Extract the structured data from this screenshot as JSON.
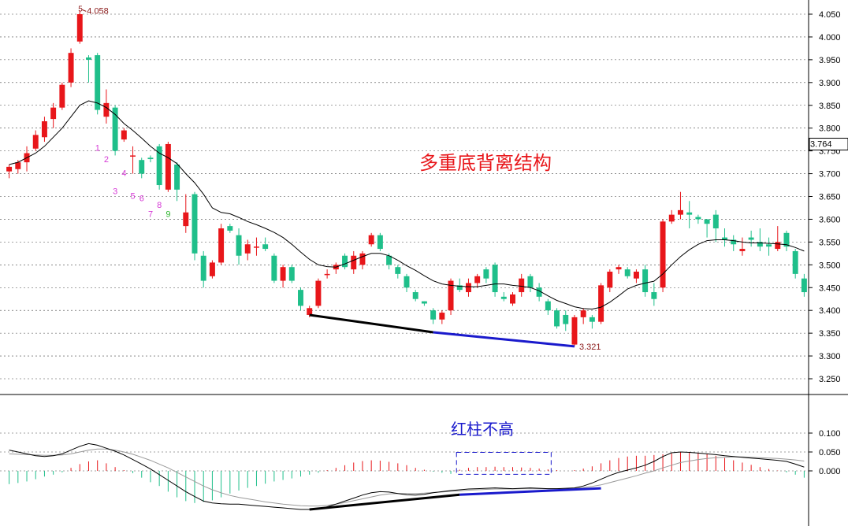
{
  "chart_data": {
    "type": "candlestick",
    "colors": {
      "up": "#e8161a",
      "down": "#1fbf8a",
      "ma": "#000000",
      "dif": "#000000",
      "dea": "#999999",
      "bottom_line_1": "#000000",
      "bottom_line_2": "#1a1acc",
      "title_text": "#e8161a",
      "macd_text": "#1a1acc",
      "seq_magenta": "#d63ad6",
      "seq_green": "#2db52d",
      "peak_label": "#8b1a1a"
    },
    "price_axis": {
      "ticks": [
        "4.050",
        "4.000",
        "3.950",
        "3.900",
        "3.850",
        "3.800",
        "3.750",
        "3.700",
        "3.650",
        "3.600",
        "3.550",
        "3.500",
        "3.450",
        "3.400",
        "3.350",
        "3.300",
        "3.250"
      ],
      "range": [
        3.225,
        4.075
      ],
      "current": "3.764"
    },
    "macd_axis": {
      "ticks": [
        "0.100",
        "0.050",
        "0.000"
      ],
      "range": [
        -0.11,
        0.12
      ]
    },
    "annotations": {
      "title": "多重底背离结构",
      "macd_note": "红柱不高",
      "high_label": "4.058",
      "high_prefix": "5",
      "low_label": "3.321",
      "sequence": [
        "1",
        "2",
        "3",
        "4",
        "5",
        "6",
        "7",
        "8",
        "9"
      ]
    },
    "candles": [
      [
        3.705,
        3.715,
        3.69,
        3.72
      ],
      [
        3.71,
        3.725,
        3.7,
        3.73
      ],
      [
        3.725,
        3.745,
        3.705,
        3.76
      ],
      [
        3.755,
        3.785,
        3.75,
        3.795
      ],
      [
        3.78,
        3.815,
        3.77,
        3.825
      ],
      [
        3.82,
        3.845,
        3.8,
        3.855
      ],
      [
        3.845,
        3.895,
        3.84,
        3.9
      ],
      [
        3.9,
        3.965,
        3.89,
        3.975
      ],
      [
        3.99,
        4.05,
        3.985,
        4.058
      ],
      [
        3.955,
        3.95,
        3.9,
        3.96
      ],
      [
        3.96,
        3.84,
        3.83,
        3.965
      ],
      [
        3.825,
        3.855,
        3.81,
        3.885
      ],
      [
        3.845,
        3.75,
        3.74,
        3.85
      ],
      [
        3.775,
        3.795,
        3.77,
        3.8
      ],
      [
        3.74,
        3.74,
        3.7,
        3.76
      ],
      [
        3.73,
        3.7,
        3.69,
        3.735
      ],
      [
        3.735,
        3.732,
        3.725,
        3.74
      ],
      [
        3.76,
        3.675,
        3.665,
        3.765
      ],
      [
        3.665,
        3.765,
        3.66,
        3.77
      ],
      [
        3.72,
        3.665,
        3.64,
        3.725
      ],
      [
        3.585,
        3.615,
        3.57,
        3.655
      ],
      [
        3.655,
        3.525,
        3.51,
        3.66
      ],
      [
        3.52,
        3.465,
        3.45,
        3.53
      ],
      [
        3.475,
        3.505,
        3.47,
        3.51
      ],
      [
        3.505,
        3.58,
        3.5,
        3.59
      ],
      [
        3.585,
        3.575,
        3.57,
        3.59
      ],
      [
        3.565,
        3.52,
        3.5,
        3.58
      ],
      [
        3.525,
        3.545,
        3.51,
        3.555
      ],
      [
        3.54,
        3.54,
        3.52,
        3.56
      ],
      [
        3.545,
        3.535,
        3.53,
        3.56
      ],
      [
        3.52,
        3.465,
        3.46,
        3.525
      ],
      [
        3.465,
        3.495,
        3.45,
        3.5
      ],
      [
        3.495,
        3.465,
        3.46,
        3.5
      ],
      [
        3.445,
        3.41,
        3.4,
        3.45
      ],
      [
        3.39,
        3.405,
        3.385,
        3.41
      ],
      [
        3.41,
        3.465,
        3.405,
        3.47
      ],
      [
        3.48,
        3.48,
        3.47,
        3.49
      ],
      [
        3.49,
        3.5,
        3.48,
        3.505
      ],
      [
        3.52,
        3.495,
        3.49,
        3.525
      ],
      [
        3.49,
        3.52,
        3.48,
        3.53
      ],
      [
        3.5,
        3.525,
        3.49,
        3.53
      ],
      [
        3.545,
        3.565,
        3.54,
        3.57
      ],
      [
        3.565,
        3.535,
        3.53,
        3.57
      ],
      [
        3.52,
        3.5,
        3.49,
        3.525
      ],
      [
        3.495,
        3.48,
        3.47,
        3.5
      ],
      [
        3.475,
        3.45,
        3.44,
        3.48
      ],
      [
        3.44,
        3.425,
        3.42,
        3.445
      ],
      [
        3.42,
        3.415,
        3.41,
        3.42
      ],
      [
        3.4,
        3.38,
        3.37,
        3.405
      ],
      [
        3.38,
        3.395,
        3.37,
        3.4
      ],
      [
        3.4,
        3.465,
        3.39,
        3.47
      ],
      [
        3.455,
        3.445,
        3.44,
        3.47
      ],
      [
        3.44,
        3.46,
        3.43,
        3.47
      ],
      [
        3.46,
        3.475,
        3.45,
        3.48
      ],
      [
        3.49,
        3.47,
        3.46,
        3.495
      ],
      [
        3.5,
        3.44,
        3.43,
        3.505
      ],
      [
        3.43,
        3.425,
        3.42,
        3.44
      ],
      [
        3.415,
        3.435,
        3.41,
        3.44
      ],
      [
        3.44,
        3.47,
        3.43,
        3.48
      ],
      [
        3.475,
        3.45,
        3.44,
        3.48
      ],
      [
        3.45,
        3.43,
        3.42,
        3.46
      ],
      [
        3.42,
        3.4,
        3.39,
        3.425
      ],
      [
        3.4,
        3.365,
        3.36,
        3.405
      ],
      [
        3.39,
        3.37,
        3.355,
        3.4
      ],
      [
        3.325,
        3.385,
        3.321,
        3.39
      ],
      [
        3.385,
        3.4,
        3.37,
        3.405
      ],
      [
        3.385,
        3.375,
        3.36,
        3.39
      ],
      [
        3.375,
        3.455,
        3.37,
        3.46
      ],
      [
        3.45,
        3.485,
        3.44,
        3.49
      ],
      [
        3.49,
        3.495,
        3.48,
        3.5
      ],
      [
        3.49,
        3.475,
        3.47,
        3.495
      ],
      [
        3.47,
        3.485,
        3.46,
        3.49
      ],
      [
        3.49,
        3.44,
        3.43,
        3.5
      ],
      [
        3.44,
        3.425,
        3.41,
        3.46
      ],
      [
        3.45,
        3.595,
        3.44,
        3.6
      ],
      [
        3.595,
        3.61,
        3.59,
        3.62
      ],
      [
        3.61,
        3.62,
        3.6,
        3.66
      ],
      [
        3.615,
        3.61,
        3.58,
        3.64
      ],
      [
        3.605,
        3.6,
        3.59,
        3.61
      ],
      [
        3.6,
        3.59,
        3.56,
        3.6
      ],
      [
        3.61,
        3.58,
        3.55,
        3.62
      ],
      [
        3.56,
        3.555,
        3.54,
        3.58
      ],
      [
        3.555,
        3.545,
        3.53,
        3.565
      ],
      [
        3.53,
        3.535,
        3.52,
        3.56
      ],
      [
        3.56,
        3.555,
        3.54,
        3.575
      ],
      [
        3.55,
        3.54,
        3.53,
        3.58
      ],
      [
        3.545,
        3.54,
        3.52,
        3.56
      ],
      [
        3.535,
        3.55,
        3.53,
        3.585
      ],
      [
        3.57,
        3.54,
        3.53,
        3.575
      ],
      [
        3.53,
        3.48,
        3.47,
        3.535
      ],
      [
        3.47,
        3.44,
        3.43,
        3.48
      ]
    ],
    "ma_line": [
      3.72,
      3.725,
      3.735,
      3.745,
      3.76,
      3.78,
      3.8,
      3.825,
      3.85,
      3.86,
      3.855,
      3.845,
      3.83,
      3.81,
      3.795,
      3.778,
      3.76,
      3.745,
      3.735,
      3.722,
      3.7,
      3.68,
      3.655,
      3.625,
      3.615,
      3.612,
      3.604,
      3.595,
      3.588,
      3.58,
      3.571,
      3.56,
      3.545,
      3.528,
      3.512,
      3.5,
      3.496,
      3.495,
      3.502,
      3.51,
      3.518,
      3.525,
      3.525,
      3.52,
      3.51,
      3.498,
      3.488,
      3.476,
      3.465,
      3.458,
      3.455,
      3.453,
      3.452,
      3.452,
      3.455,
      3.458,
      3.458,
      3.455,
      3.453,
      3.45,
      3.443,
      3.432,
      3.422,
      3.415,
      3.408,
      3.404,
      3.403,
      3.407,
      3.418,
      3.432,
      3.447,
      3.455,
      3.46,
      3.464,
      3.48,
      3.5,
      3.518,
      3.533,
      3.545,
      3.553,
      3.555,
      3.555,
      3.553,
      3.55,
      3.548,
      3.548,
      3.547,
      3.546,
      3.544,
      3.538,
      3.53
    ],
    "macd_hist": [
      -0.035,
      -0.032,
      -0.028,
      -0.022,
      -0.015,
      -0.01,
      -0.004,
      0.008,
      0.018,
      0.025,
      0.028,
      0.02,
      0.01,
      0.002,
      -0.006,
      -0.018,
      -0.03,
      -0.04,
      -0.055,
      -0.07,
      -0.08,
      -0.085,
      -0.082,
      -0.078,
      -0.07,
      -0.06,
      -0.052,
      -0.045,
      -0.04,
      -0.034,
      -0.028,
      -0.024,
      -0.02,
      -0.015,
      -0.01,
      -0.005,
      0.002,
      0.008,
      0.015,
      0.022,
      0.026,
      0.028,
      0.027,
      0.024,
      0.02,
      0.015,
      0.008,
      0.003,
      -0.002,
      -0.005,
      -0.008,
      0.003,
      0.008,
      0.01,
      0.01,
      0.011,
      0.01,
      0.01,
      0.009,
      0.008,
      0.006,
      0.004,
      0.002,
      0.0,
      0.002,
      0.006,
      0.012,
      0.02,
      0.028,
      0.034,
      0.038,
      0.04,
      0.04,
      0.042,
      0.044,
      0.046,
      0.05,
      0.05,
      0.048,
      0.045,
      0.04,
      0.034,
      0.028,
      0.022,
      0.016,
      0.01,
      0.005,
      0.001,
      -0.004,
      -0.01,
      -0.018
    ],
    "dif_line": [
      0.055,
      0.05,
      0.045,
      0.04,
      0.038,
      0.04,
      0.045,
      0.055,
      0.065,
      0.072,
      0.068,
      0.06,
      0.052,
      0.042,
      0.03,
      0.018,
      0.005,
      -0.01,
      -0.025,
      -0.04,
      -0.055,
      -0.068,
      -0.08,
      -0.085,
      -0.087,
      -0.088,
      -0.088,
      -0.09,
      -0.092,
      -0.094,
      -0.096,
      -0.098,
      -0.1,
      -0.102,
      -0.102,
      -0.1,
      -0.095,
      -0.088,
      -0.08,
      -0.072,
      -0.064,
      -0.058,
      -0.055,
      -0.056,
      -0.06,
      -0.063,
      -0.064,
      -0.062,
      -0.058,
      -0.055,
      -0.052,
      -0.05,
      -0.048,
      -0.047,
      -0.046,
      -0.045,
      -0.046,
      -0.047,
      -0.046,
      -0.045,
      -0.046,
      -0.047,
      -0.047,
      -0.046,
      -0.045,
      -0.04,
      -0.032,
      -0.022,
      -0.012,
      -0.004,
      0.002,
      0.008,
      0.015,
      0.025,
      0.038,
      0.048,
      0.05,
      0.049,
      0.047,
      0.045,
      0.043,
      0.04,
      0.038,
      0.036,
      0.034,
      0.032,
      0.03,
      0.028,
      0.025,
      0.018,
      0.01
    ],
    "dea_line": [
      0.045,
      0.044,
      0.043,
      0.042,
      0.041,
      0.041,
      0.042,
      0.045,
      0.05,
      0.055,
      0.058,
      0.058,
      0.055,
      0.05,
      0.044,
      0.036,
      0.028,
      0.018,
      0.008,
      -0.004,
      -0.016,
      -0.028,
      -0.04,
      -0.05,
      -0.058,
      -0.065,
      -0.07,
      -0.074,
      -0.078,
      -0.082,
      -0.085,
      -0.088,
      -0.09,
      -0.092,
      -0.093,
      -0.093,
      -0.091,
      -0.088,
      -0.084,
      -0.079,
      -0.074,
      -0.069,
      -0.064,
      -0.061,
      -0.06,
      -0.06,
      -0.06,
      -0.059,
      -0.057,
      -0.056,
      -0.054,
      -0.053,
      -0.051,
      -0.05,
      -0.049,
      -0.048,
      -0.048,
      -0.048,
      -0.047,
      -0.047,
      -0.047,
      -0.047,
      -0.047,
      -0.047,
      -0.046,
      -0.044,
      -0.041,
      -0.037,
      -0.031,
      -0.025,
      -0.019,
      -0.013,
      -0.006,
      0.0,
      0.008,
      0.015,
      0.022,
      0.026,
      0.03,
      0.033,
      0.035,
      0.036,
      0.037,
      0.037,
      0.036,
      0.035,
      0.034,
      0.033,
      0.031,
      0.029,
      0.026
    ],
    "divergence_lines": {
      "price": [
        [
          [
            34,
            3.39
          ],
          [
            48,
            3.352
          ]
        ],
        [
          [
            48,
            3.352
          ],
          [
            64,
            3.321
          ]
        ]
      ],
      "macd": [
        [
          [
            34,
            -0.102
          ],
          [
            51,
            -0.063
          ]
        ],
        [
          [
            51,
            -0.063
          ],
          [
            67,
            -0.046
          ]
        ]
      ]
    },
    "sequence_positions": [
      [
        10,
        3.75,
        "m"
      ],
      [
        11,
        3.725,
        "m"
      ],
      [
        12,
        3.655,
        "m"
      ],
      [
        13,
        3.695,
        "m"
      ],
      [
        14,
        3.645,
        "m"
      ],
      [
        15,
        3.64,
        "m"
      ],
      [
        16,
        3.605,
        "m"
      ],
      [
        17,
        3.625,
        "m"
      ],
      [
        18,
        3.605,
        "g"
      ]
    ],
    "macd_box": {
      "from": 51,
      "to": 61
    }
  }
}
